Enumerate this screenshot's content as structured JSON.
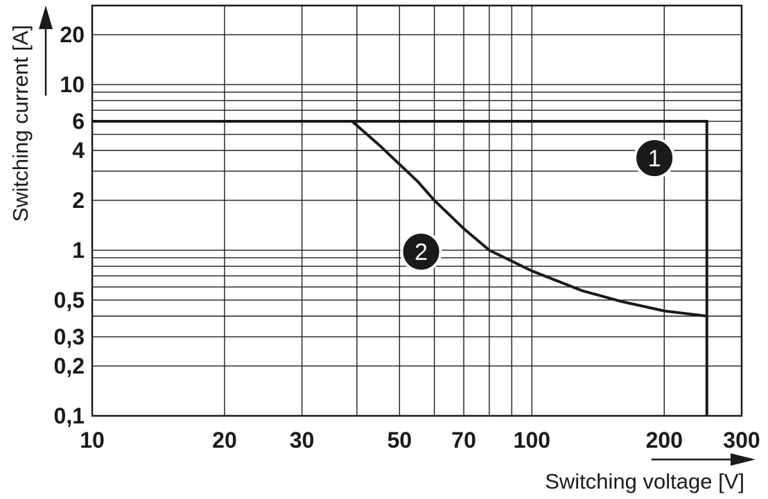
{
  "chart_data": {
    "type": "line",
    "xlabel": "Switching voltage [V]",
    "ylabel": "Switching current [A]",
    "x_scale": "log",
    "y_scale": "log",
    "xlim": [
      10,
      300
    ],
    "ylim": [
      0.1,
      30
    ],
    "grid": true,
    "x_ticks": [
      {
        "value": 10,
        "label": "10"
      },
      {
        "value": 20,
        "label": "20"
      },
      {
        "value": 30,
        "label": "30"
      },
      {
        "value": 50,
        "label": "50"
      },
      {
        "value": 70,
        "label": "70"
      },
      {
        "value": 100,
        "label": "100"
      },
      {
        "value": 200,
        "label": "200"
      },
      {
        "value": 300,
        "label": "300"
      }
    ],
    "y_ticks": [
      {
        "value": 0.1,
        "label": "0,1"
      },
      {
        "value": 0.2,
        "label": "0,2"
      },
      {
        "value": 0.3,
        "label": "0,3"
      },
      {
        "value": 0.5,
        "label": "0,5"
      },
      {
        "value": 1,
        "label": "1"
      },
      {
        "value": 2,
        "label": "2"
      },
      {
        "value": 4,
        "label": "4"
      },
      {
        "value": 6,
        "label": "6"
      },
      {
        "value": 10,
        "label": "10"
      },
      {
        "value": 20,
        "label": "20"
      }
    ],
    "x_gridlines": [
      10,
      20,
      30,
      40,
      50,
      60,
      70,
      80,
      90,
      100,
      200,
      300
    ],
    "y_gridlines": [
      0.1,
      0.2,
      0.3,
      0.4,
      0.5,
      0.6,
      0.7,
      0.8,
      0.9,
      1,
      2,
      3,
      4,
      5,
      6,
      7,
      8,
      9,
      10,
      20
    ],
    "series": [
      {
        "label": "1",
        "points": [
          [
            10,
            6
          ],
          [
            250,
            6
          ],
          [
            250,
            0.1
          ]
        ]
      },
      {
        "label": "2",
        "points": [
          [
            39,
            6
          ],
          [
            45,
            4.3
          ],
          [
            50,
            3.3
          ],
          [
            55,
            2.6
          ],
          [
            60,
            2.0
          ],
          [
            70,
            1.35
          ],
          [
            80,
            1.0
          ],
          [
            100,
            0.75
          ],
          [
            130,
            0.57
          ],
          [
            160,
            0.49
          ],
          [
            200,
            0.43
          ],
          [
            250,
            0.4
          ]
        ]
      }
    ],
    "markers": [
      {
        "label": "1",
        "x": 190,
        "y": 3.6
      },
      {
        "label": "2",
        "x": 56,
        "y": 0.98
      }
    ]
  }
}
